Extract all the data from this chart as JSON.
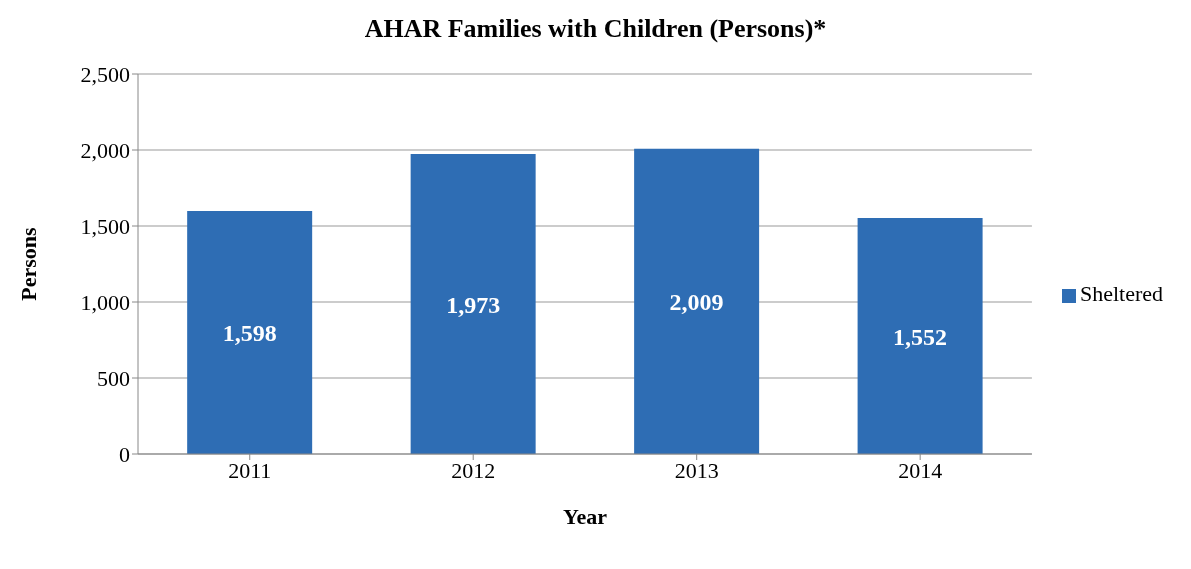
{
  "chart_data": {
    "type": "bar",
    "title": "AHAR Families with Children (Persons)*",
    "xlabel": "Year",
    "ylabel": "Persons",
    "categories": [
      "2011",
      "2012",
      "2013",
      "2014"
    ],
    "series": [
      {
        "name": "Sheltered",
        "color": "#2e6db4",
        "values": [
          1598,
          1973,
          2009,
          1552
        ],
        "value_labels": [
          "1,598",
          "1,973",
          "2,009",
          "1,552"
        ]
      }
    ],
    "ylim": [
      0,
      2500
    ],
    "yticks": [
      0,
      500,
      {
        "value": 1000,
        "label": "1,000"
      },
      {
        "value": 1500,
        "label": "1,500"
      },
      {
        "value": 2000,
        "label": "2,000"
      },
      {
        "value": 2500,
        "label": "2,500"
      }
    ],
    "grid": "y",
    "legend": "right"
  }
}
